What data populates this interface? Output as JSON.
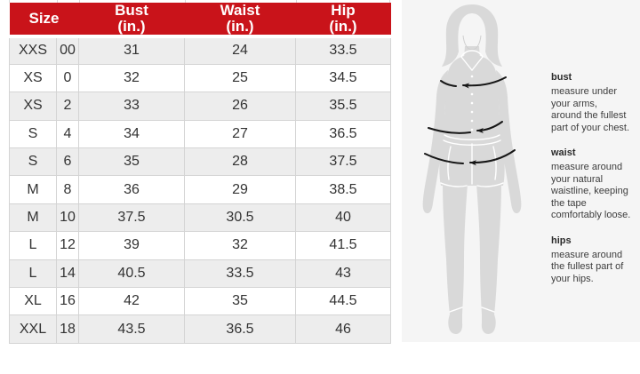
{
  "colors": {
    "header_red": "#c9131a",
    "row_alt_gray": "#ededed",
    "row_border": "#d4d4d4",
    "text_dark": "#333333",
    "panel_bg": "#f5f5f5",
    "silhouette_gray": "#d9d9d9",
    "arrow_black": "#161616"
  },
  "size_chart": {
    "columns": [
      {
        "label": "Size"
      },
      {
        "label": "Bust\n(in.)"
      },
      {
        "label": "Waist\n(in.)"
      },
      {
        "label": "Hip\n(in.)"
      }
    ],
    "rows": [
      {
        "size": "XXS",
        "num": "00",
        "bust": "31",
        "waist": "24",
        "hip": "33.5"
      },
      {
        "size": "XS",
        "num": "0",
        "bust": "32",
        "waist": "25",
        "hip": "34.5"
      },
      {
        "size": "XS",
        "num": "2",
        "bust": "33",
        "waist": "26",
        "hip": "35.5"
      },
      {
        "size": "S",
        "num": "4",
        "bust": "34",
        "waist": "27",
        "hip": "36.5"
      },
      {
        "size": "S",
        "num": "6",
        "bust": "35",
        "waist": "28",
        "hip": "37.5"
      },
      {
        "size": "M",
        "num": "8",
        "bust": "36",
        "waist": "29",
        "hip": "38.5"
      },
      {
        "size": "M",
        "num": "10",
        "bust": "37.5",
        "waist": "30.5",
        "hip": "40"
      },
      {
        "size": "L",
        "num": "12",
        "bust": "39",
        "waist": "32",
        "hip": "41.5"
      },
      {
        "size": "L",
        "num": "14",
        "bust": "40.5",
        "waist": "33.5",
        "hip": "43"
      },
      {
        "size": "XL",
        "num": "16",
        "bust": "42",
        "waist": "35",
        "hip": "44.5"
      },
      {
        "size": "XXL",
        "num": "18",
        "bust": "43.5",
        "waist": "36.5",
        "hip": "46"
      }
    ]
  },
  "measure_guide": {
    "figure": "woman-silhouette-with-measurement-arrows",
    "sections": [
      {
        "title": "bust",
        "body": "measure under\nyour arms,\naround the fullest\npart of your chest."
      },
      {
        "title": "waist",
        "body": "measure around\nyour natural\nwaistline, keeping\nthe tape\ncomfortably loose."
      },
      {
        "title": "hips",
        "body": "measure around\nthe fullest part of\nyour hips."
      }
    ]
  }
}
